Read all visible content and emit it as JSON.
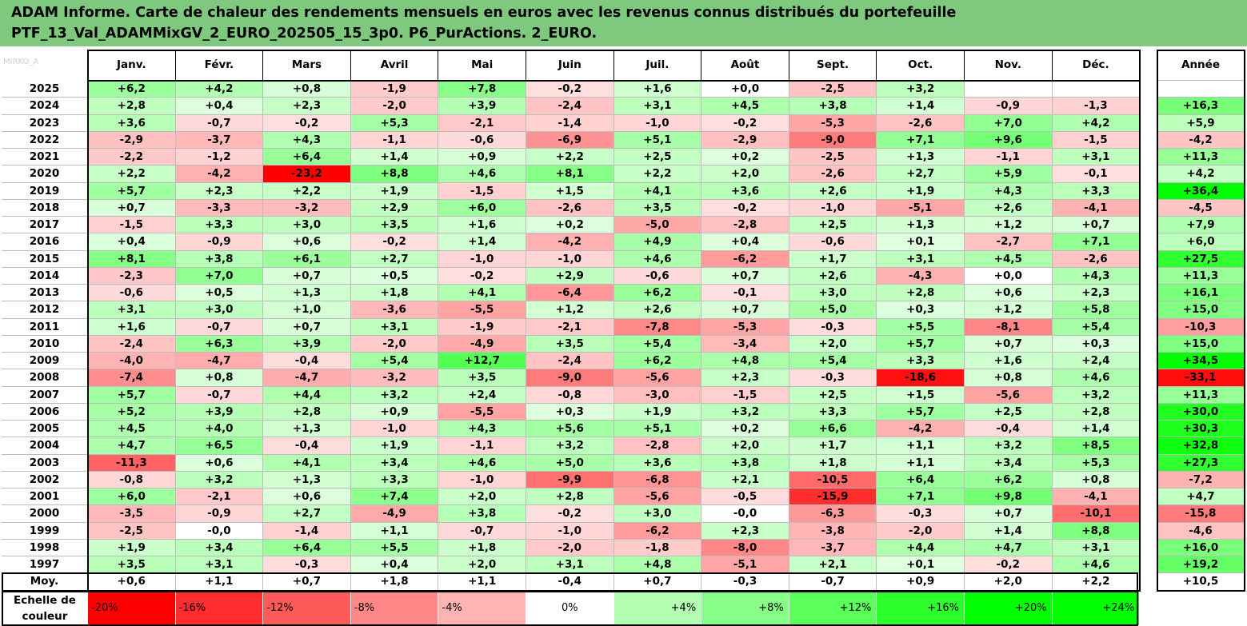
{
  "title": {
    "line1": "ADAM Informe. Carte de chaleur des rendements mensuels en euros avec les revenus connus distribués du portefeuille",
    "line2": "PTF_13_Val_ADAMMixGV_2_EURO_202505_15_3p0. P6_PurActions. 2_EURO."
  },
  "watermark": "MIRKO_A",
  "chart_data": {
    "type": "heatmap",
    "months": [
      "Janv.",
      "Févr.",
      "Mars",
      "Avril",
      "Mai",
      "Juin",
      "Juil.",
      "Août",
      "Sept.",
      "Oct.",
      "Nov.",
      "Déc."
    ],
    "annual_label": "Année",
    "rows": [
      {
        "year": "2025",
        "values": [
          "+6,2",
          "+4,2",
          "+0,8",
          "-1,9",
          "+7,8",
          "-0,2",
          "+1,6",
          "+0,0",
          "-2,5",
          "+3,2",
          "",
          ""
        ],
        "annual": ""
      },
      {
        "year": "2024",
        "values": [
          "+2,8",
          "+0,4",
          "+2,3",
          "-2,0",
          "+3,9",
          "-2,4",
          "+3,1",
          "+4,5",
          "+3,8",
          "+1,4",
          "-0,9",
          "-1,3"
        ],
        "annual": "+16,3"
      },
      {
        "year": "2023",
        "values": [
          "+3,6",
          "-0,7",
          "-0,2",
          "+5,3",
          "-2,1",
          "-1,4",
          "-1,0",
          "-0,2",
          "-5,3",
          "-2,6",
          "+7,0",
          "+4,2"
        ],
        "annual": "+5,9"
      },
      {
        "year": "2022",
        "values": [
          "-2,9",
          "-3,7",
          "+4,3",
          "-1,1",
          "-0,6",
          "-6,9",
          "+5,1",
          "-2,9",
          "-9,0",
          "+7,1",
          "+9,6",
          "-1,5"
        ],
        "annual": "-4,2"
      },
      {
        "year": "2021",
        "values": [
          "-2,2",
          "-1,2",
          "+6,4",
          "+1,4",
          "+0,9",
          "+2,2",
          "+2,5",
          "+0,2",
          "-2,5",
          "+1,3",
          "-1,1",
          "+3,1"
        ],
        "annual": "+11,3"
      },
      {
        "year": "2020",
        "values": [
          "+2,2",
          "-4,2",
          "-23,2",
          "+8,8",
          "+4,6",
          "+8,1",
          "+2,2",
          "+2,0",
          "-2,6",
          "+2,7",
          "+5,9",
          "-0,1"
        ],
        "annual": "+4,2"
      },
      {
        "year": "2019",
        "values": [
          "+5,7",
          "+2,3",
          "+2,2",
          "+1,9",
          "-1,5",
          "+1,5",
          "+4,1",
          "+3,6",
          "+2,6",
          "+1,9",
          "+4,3",
          "+3,3"
        ],
        "annual": "+36,4"
      },
      {
        "year": "2018",
        "values": [
          "+0,7",
          "-3,3",
          "-3,2",
          "+2,9",
          "+6,0",
          "-2,6",
          "+3,5",
          "-0,2",
          "-1,0",
          "-5,1",
          "+2,6",
          "-4,1"
        ],
        "annual": "-4,5"
      },
      {
        "year": "2017",
        "values": [
          "-1,5",
          "+3,3",
          "+3,0",
          "+3,5",
          "+1,6",
          "+0,2",
          "-5,0",
          "-2,8",
          "+2,5",
          "+1,3",
          "+1,2",
          "+0,7"
        ],
        "annual": "+7,9"
      },
      {
        "year": "2016",
        "values": [
          "+0,4",
          "-0,9",
          "+0,6",
          "-0,2",
          "+1,4",
          "-4,2",
          "+4,9",
          "+0,4",
          "-0,6",
          "+0,1",
          "-2,7",
          "+7,1"
        ],
        "annual": "+6,0"
      },
      {
        "year": "2015",
        "values": [
          "+8,1",
          "+3,8",
          "+6,1",
          "+2,7",
          "-1,0",
          "-1,0",
          "+4,6",
          "-6,2",
          "+1,7",
          "+3,1",
          "+4,5",
          "-2,6"
        ],
        "annual": "+27,5"
      },
      {
        "year": "2014",
        "values": [
          "-2,3",
          "+7,0",
          "+0,7",
          "+0,5",
          "-0,2",
          "+2,9",
          "-0,6",
          "+0,7",
          "+2,6",
          "-4,3",
          "+0,0",
          "+4,3"
        ],
        "annual": "+11,3"
      },
      {
        "year": "2013",
        "values": [
          "-0,6",
          "+0,5",
          "+1,3",
          "+1,8",
          "+4,1",
          "-6,4",
          "+6,2",
          "-0,1",
          "+3,0",
          "+2,8",
          "+0,6",
          "+2,3"
        ],
        "annual": "+16,1"
      },
      {
        "year": "2012",
        "values": [
          "+3,1",
          "+3,0",
          "+1,0",
          "-3,6",
          "-5,5",
          "+1,2",
          "+2,6",
          "+0,7",
          "+5,0",
          "+0,3",
          "+1,2",
          "+5,8"
        ],
        "annual": "+15,0"
      },
      {
        "year": "2011",
        "values": [
          "+1,6",
          "-0,7",
          "+0,7",
          "+3,1",
          "-1,9",
          "-2,1",
          "-7,8",
          "-5,3",
          "-0,3",
          "+5,5",
          "-8,1",
          "+5,4"
        ],
        "annual": "-10,3"
      },
      {
        "year": "2010",
        "values": [
          "-2,4",
          "+6,3",
          "+3,9",
          "-2,0",
          "-4,9",
          "+3,5",
          "+5,4",
          "-3,4",
          "+2,0",
          "+5,7",
          "+0,7",
          "+0,3"
        ],
        "annual": "+15,0"
      },
      {
        "year": "2009",
        "values": [
          "-4,0",
          "-4,7",
          "-0,4",
          "+5,4",
          "+12,7",
          "-2,4",
          "+6,2",
          "+4,8",
          "+5,4",
          "+3,3",
          "+1,6",
          "+2,4"
        ],
        "annual": "+34,5"
      },
      {
        "year": "2008",
        "values": [
          "-7,4",
          "+0,8",
          "-4,7",
          "-3,2",
          "+3,5",
          "-9,0",
          "-5,6",
          "+2,3",
          "-0,3",
          "-18,6",
          "+0,8",
          "+4,6"
        ],
        "annual": "-33,1"
      },
      {
        "year": "2007",
        "values": [
          "+5,7",
          "-0,7",
          "+4,4",
          "+3,2",
          "+2,4",
          "-0,8",
          "-3,0",
          "-1,5",
          "+2,5",
          "+1,5",
          "-5,6",
          "+3,2"
        ],
        "annual": "+11,3"
      },
      {
        "year": "2006",
        "values": [
          "+5,2",
          "+3,9",
          "+2,8",
          "+0,9",
          "-5,5",
          "+0,3",
          "+1,9",
          "+3,2",
          "+3,3",
          "+5,7",
          "+2,5",
          "+2,8"
        ],
        "annual": "+30,0"
      },
      {
        "year": "2005",
        "values": [
          "+4,5",
          "+4,0",
          "+1,3",
          "-1,0",
          "+4,3",
          "+5,6",
          "+5,1",
          "+0,2",
          "+6,6",
          "-4,2",
          "-0,4",
          "+1,4"
        ],
        "annual": "+30,3"
      },
      {
        "year": "2004",
        "values": [
          "+4,7",
          "+6,5",
          "-0,4",
          "+1,9",
          "-1,1",
          "+3,2",
          "-2,8",
          "+2,0",
          "+1,7",
          "+1,1",
          "+3,2",
          "+8,5"
        ],
        "annual": "+32,8"
      },
      {
        "year": "2003",
        "values": [
          "-11,3",
          "+0,6",
          "+4,1",
          "+3,4",
          "+4,6",
          "+5,0",
          "+3,6",
          "+3,8",
          "+1,8",
          "+1,1",
          "+3,4",
          "+5,3"
        ],
        "annual": "+27,3"
      },
      {
        "year": "2002",
        "values": [
          "-0,8",
          "+3,2",
          "+1,3",
          "+3,3",
          "-1,0",
          "-9,9",
          "-6,8",
          "+2,1",
          "-10,5",
          "+6,4",
          "+6,2",
          "+0,8"
        ],
        "annual": "-7,2"
      },
      {
        "year": "2001",
        "values": [
          "+6,0",
          "-2,1",
          "+0,6",
          "+7,4",
          "+2,0",
          "+2,8",
          "-5,6",
          "-0,5",
          "-15,9",
          "+7,1",
          "+9,8",
          "-4,1"
        ],
        "annual": "+4,7"
      },
      {
        "year": "2000",
        "values": [
          "-3,5",
          "-0,9",
          "+2,7",
          "-4,9",
          "+3,8",
          "-0,2",
          "+3,0",
          "-0,0",
          "-6,3",
          "-0,3",
          "+0,7",
          "-10,1"
        ],
        "annual": "-15,8"
      },
      {
        "year": "1999",
        "values": [
          "-2,5",
          "-0,0",
          "-1,4",
          "+1,1",
          "-0,7",
          "-1,0",
          "-6,2",
          "+2,3",
          "-3,8",
          "-2,0",
          "+1,4",
          "+8,8"
        ],
        "annual": "-4,6"
      },
      {
        "year": "1998",
        "values": [
          "+1,9",
          "+3,4",
          "+6,4",
          "+5,5",
          "+1,8",
          "-2,0",
          "-1,8",
          "-8,0",
          "-3,7",
          "+4,4",
          "+4,7",
          "+3,1"
        ],
        "annual": "+16,0"
      },
      {
        "year": "1997",
        "values": [
          "+3,5",
          "+3,1",
          "-0,3",
          "+0,4",
          "+2,0",
          "+3,1",
          "+4,8",
          "-5,1",
          "+2,1",
          "+0,1",
          "-0,2",
          "+4,6"
        ],
        "annual": "+19,2"
      }
    ],
    "average": {
      "label": "Moy.",
      "values": [
        "+0,6",
        "+1,1",
        "+0,7",
        "+1,8",
        "+1,1",
        "-0,4",
        "+0,7",
        "-0,3",
        "-0,7",
        "+0,9",
        "+2,0",
        "+2,2"
      ],
      "annual": "+10,5"
    },
    "scale": {
      "label_line1": "Echelle de",
      "label_line2": "couleur",
      "steps": [
        "-20%",
        "-16%",
        "-12%",
        "-8%",
        "-4%",
        "0%",
        "+4%",
        "+8%",
        "+12%",
        "+16%",
        "+20%",
        "+24%"
      ]
    },
    "colors": {
      "negative_max": "#ff0000",
      "positive_max": "#00ff00",
      "zero": "#ffffff"
    }
  }
}
